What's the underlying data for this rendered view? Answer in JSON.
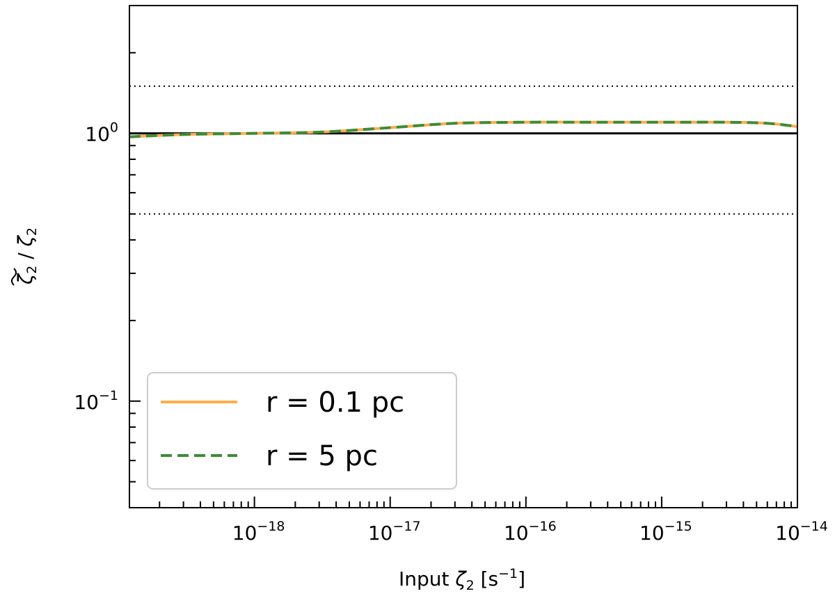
{
  "chart_data": {
    "type": "line",
    "title": "",
    "xlabel": {
      "prefix": "Input ",
      "symbol": "ζ",
      "sub": "2",
      "unit_open": " [s",
      "unit_exp": "−1",
      "unit_close": "]"
    },
    "ylabel": {
      "num_symbol": "ζ",
      "num_sub": "2",
      "sep": " / ",
      "den_symbol": "ζ",
      "den_sub": "2"
    },
    "xscale": "log",
    "yscale": "log",
    "xlim": [
      1.2e-19,
      1e-14
    ],
    "ylim": [
      0.04,
      3.0
    ],
    "x_major_ticks": [
      {
        "value": 1e-18,
        "base": "10",
        "exp": "−18"
      },
      {
        "value": 1e-17,
        "base": "10",
        "exp": "−17"
      },
      {
        "value": 1e-16,
        "base": "10",
        "exp": "−16"
      },
      {
        "value": 1e-15,
        "base": "10",
        "exp": "−15"
      },
      {
        "value": 1e-14,
        "base": "10",
        "exp": "−14"
      }
    ],
    "y_major_ticks": [
      {
        "value": 1,
        "base": "10",
        "exp": "0"
      },
      {
        "value": 0.1,
        "base": "10",
        "exp": "−1"
      }
    ],
    "reference_lines": [
      {
        "y": 1.0,
        "style": "solid",
        "color": "#000000"
      },
      {
        "y": 1.5,
        "style": "dotted",
        "color": "#000000"
      },
      {
        "y": 0.5,
        "style": "dotted",
        "color": "#000000"
      }
    ],
    "series": [
      {
        "name": "r = 0.1 pc",
        "color": "#ffad4a",
        "style": "solid",
        "x": [
          1.2e-19,
          3e-19,
          1e-18,
          3e-18,
          1e-17,
          3e-17,
          1e-16,
          3e-16,
          1e-15,
          3e-15,
          6e-15,
          1e-14
        ],
        "y": [
          0.97,
          0.99,
          1.0,
          1.01,
          1.05,
          1.09,
          1.1,
          1.1,
          1.1,
          1.1,
          1.09,
          1.06
        ]
      },
      {
        "name": "r = 5 pc",
        "color": "#3d8b37",
        "style": "dashed",
        "x": [
          1.2e-19,
          3e-19,
          1e-18,
          3e-18,
          1e-17,
          3e-17,
          1e-16,
          3e-16,
          1e-15,
          3e-15,
          6e-15,
          1e-14
        ],
        "y": [
          0.97,
          0.99,
          1.0,
          1.01,
          1.05,
          1.09,
          1.1,
          1.1,
          1.1,
          1.1,
          1.09,
          1.06
        ]
      }
    ],
    "legend": {
      "position": "lower-left"
    },
    "grid": false
  }
}
